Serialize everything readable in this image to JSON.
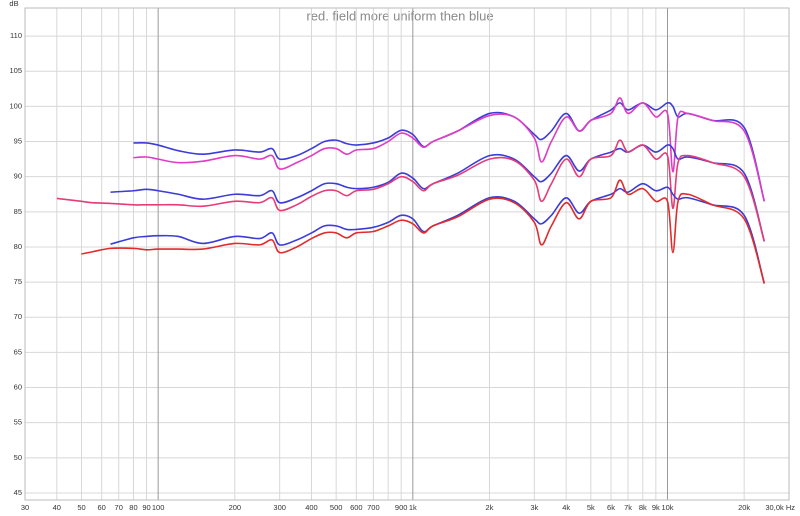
{
  "chart_data": {
    "type": "line",
    "title": "red. field more uniform then blue",
    "y_label": "dB",
    "xscale": "log",
    "grid": true,
    "xlim": [
      30,
      30000
    ],
    "ylim": [
      44,
      114
    ],
    "yticks": [
      45,
      50,
      55,
      60,
      65,
      70,
      75,
      80,
      85,
      90,
      95,
      100,
      105,
      110
    ],
    "xticks": [
      30,
      40,
      50,
      60,
      70,
      80,
      90,
      100,
      200,
      300,
      400,
      500,
      600,
      700,
      {
        "value": 800,
        "label": null
      },
      900,
      {
        "value": 1000,
        "label": "1k"
      },
      {
        "value": 2000,
        "label": "2k"
      },
      {
        "value": 3000,
        "label": "3k"
      },
      {
        "value": 4000,
        "label": "4k"
      },
      {
        "value": 5000,
        "label": "5k"
      },
      {
        "value": 6000,
        "label": "6k"
      },
      {
        "value": 7000,
        "label": "7k"
      },
      {
        "value": 8000,
        "label": "8k"
      },
      {
        "value": 9000,
        "label": "9k"
      },
      {
        "value": 10000,
        "label": "10k"
      },
      {
        "value": 20000,
        "label": "20k"
      },
      {
        "value": 30000,
        "label": "30,0k Hz"
      }
    ],
    "x": [
      40,
      50,
      55,
      65,
      80,
      90,
      100,
      120,
      150,
      200,
      250,
      280,
      300,
      350,
      400,
      450,
      500,
      550,
      600,
      700,
      800,
      900,
      1000,
      1100,
      1200,
      1500,
      2000,
      2500,
      3000,
      3200,
      3500,
      4000,
      4500,
      5000,
      6000,
      6500,
      7000,
      8000,
      9000,
      10000,
      10500,
      11000,
      12000,
      15000,
      20000,
      24000
    ],
    "series": [
      {
        "color": "#3c3cd8",
        "values": [
          null,
          null,
          null,
          null,
          94.8,
          94.8,
          94.5,
          93.7,
          93.2,
          93.8,
          93.5,
          94,
          92.5,
          93,
          94,
          95,
          95.2,
          94.7,
          94.5,
          94.8,
          95.5,
          96.6,
          96,
          94.3,
          95,
          96.5,
          99,
          98.5,
          96,
          95.3,
          96.5,
          99,
          96.5,
          98,
          99.5,
          100.5,
          99.5,
          100.5,
          99.5,
          100.5,
          100,
          98.5,
          99,
          98,
          97,
          86.5
        ]
      },
      {
        "color": "#e03cc4",
        "values": [
          null,
          null,
          null,
          null,
          92.7,
          92.8,
          92.5,
          92,
          92.2,
          93,
          92.5,
          93,
          91.1,
          92,
          93,
          94,
          94,
          93.2,
          93.8,
          94,
          95,
          96.2,
          95.5,
          94.2,
          95,
          96.5,
          98.7,
          98.5,
          95.5,
          92.1,
          95,
          98.5,
          96.5,
          98,
          99,
          101.2,
          99,
          100.5,
          98.5,
          99,
          90.7,
          98.5,
          99,
          98,
          96.5,
          86.5
        ]
      },
      {
        "color": "#3c3cd8",
        "values": [
          null,
          null,
          null,
          87.8,
          88,
          88.2,
          88,
          87.5,
          86.8,
          87.5,
          87.3,
          88,
          86.3,
          87,
          88,
          89,
          89,
          88.5,
          88.3,
          88.5,
          89.2,
          90.5,
          89.8,
          88.3,
          89,
          90.5,
          93,
          92.5,
          90,
          89.3,
          90.5,
          93,
          90.8,
          92.5,
          93.5,
          94,
          93.5,
          94.5,
          93.5,
          94.5,
          94,
          92.5,
          92.8,
          92,
          90.5,
          80.8
        ]
      },
      {
        "color": "#e63c78",
        "values": [
          86.9,
          86.5,
          86.3,
          86.2,
          86,
          86,
          86,
          86,
          85.8,
          86.5,
          86.3,
          87,
          85.2,
          86,
          87.2,
          88,
          88,
          87.3,
          88,
          88.2,
          89,
          90,
          89.3,
          88,
          89,
          90.2,
          92.5,
          92.3,
          89.5,
          86.5,
          89,
          92.5,
          90,
          92.5,
          93,
          95.2,
          93.5,
          94.5,
          92.5,
          93,
          85.5,
          92,
          93,
          92,
          90,
          80.8
        ]
      },
      {
        "color": "#3c3cd8",
        "values": [
          null,
          null,
          null,
          80.4,
          81.3,
          81.5,
          81.6,
          81.5,
          80.5,
          81.5,
          81.2,
          82,
          80.3,
          81,
          82,
          83,
          83,
          82.5,
          82.5,
          82.8,
          83.5,
          84.5,
          84,
          82.2,
          83,
          84.5,
          87,
          86.5,
          84,
          83.3,
          84.5,
          87,
          84.8,
          86.5,
          87.5,
          88.3,
          87.8,
          89,
          88,
          88.5,
          87.5,
          86.8,
          87,
          86,
          84.5,
          74.8
        ]
      },
      {
        "color": "#e02c2c",
        "values": [
          null,
          79,
          79.3,
          79.8,
          79.8,
          79.6,
          79.7,
          79.7,
          79.7,
          80.5,
          80.3,
          81,
          79.2,
          80,
          81.2,
          82,
          82,
          81.3,
          82,
          82.2,
          83,
          83.8,
          83.3,
          82,
          83,
          84.3,
          86.8,
          86.3,
          83.5,
          80.3,
          83,
          86.3,
          84,
          86.5,
          87,
          89.5,
          87.5,
          88.3,
          86.5,
          86.5,
          79.2,
          86.5,
          87.5,
          86,
          84,
          74.8
        ]
      }
    ]
  }
}
